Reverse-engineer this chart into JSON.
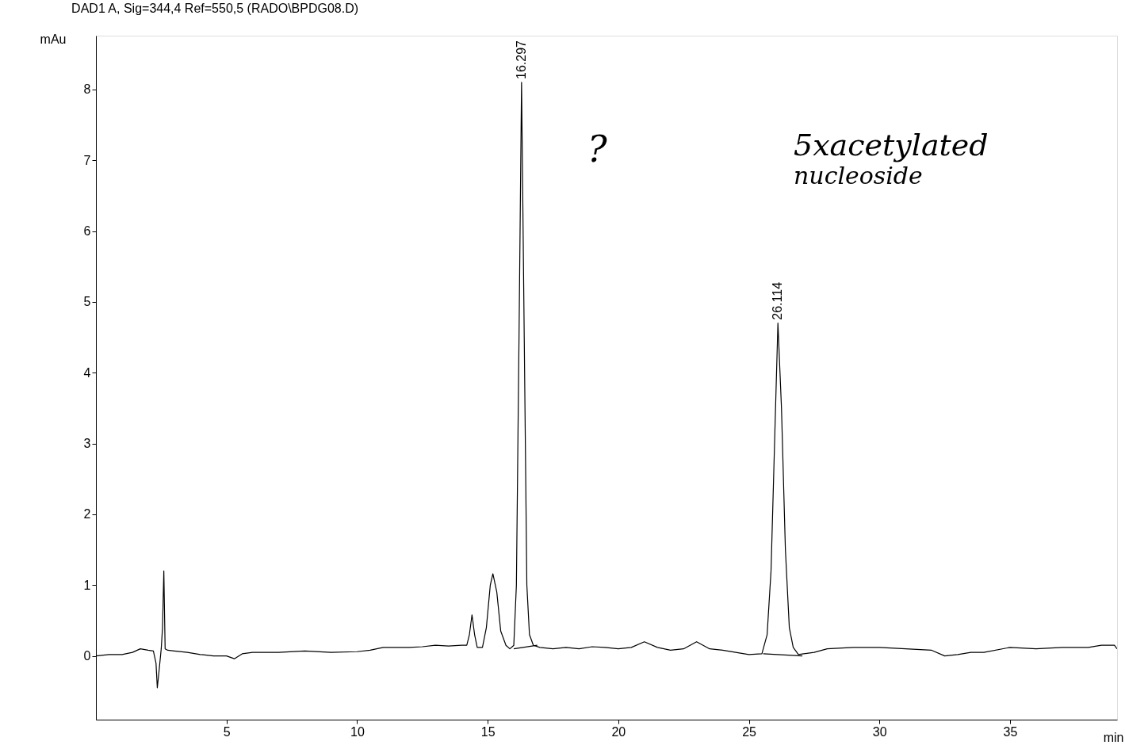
{
  "chart_data": {
    "type": "line",
    "title": "DAD1 A, Sig=344,4 Ref=550,5 (RADO\\BPDG08.D)",
    "xlabel": "min",
    "ylabel": "mAu",
    "xlim": [
      0,
      39.1
    ],
    "ylim": [
      -0.9,
      8.76
    ],
    "xticks": [
      5,
      10,
      15,
      20,
      25,
      30,
      35
    ],
    "yticks": [
      0,
      1,
      2,
      3,
      4,
      5,
      6,
      7,
      8
    ],
    "grid": false,
    "marker": "none",
    "line_style": "solid",
    "series": [
      {
        "color": "#000000",
        "x": [
          0,
          0.5,
          1.0,
          1.4,
          1.7,
          2.0,
          2.2,
          2.3,
          2.35,
          2.42,
          2.5,
          2.55,
          2.6,
          2.65,
          2.75,
          3,
          3.5,
          4,
          4.5,
          5,
          5.3,
          5.6,
          6,
          7,
          8,
          9,
          10,
          10.5,
          11,
          11.5,
          12,
          12.5,
          13,
          13.5,
          14,
          14.2,
          14.3,
          14.4,
          14.5,
          14.6,
          14.8,
          14.95,
          15.1,
          15.2,
          15.35,
          15.5,
          15.7,
          15.85,
          16.0,
          16.1,
          16.2,
          16.297,
          16.4,
          16.5,
          16.6,
          16.75,
          17,
          17.5,
          18,
          18.5,
          19,
          19.5,
          20,
          20.5,
          21,
          21.5,
          22,
          22.5,
          23,
          23.5,
          24,
          24.5,
          25,
          25.5,
          25.7,
          25.85,
          26.0,
          26.114,
          26.25,
          26.4,
          26.55,
          26.7,
          26.9,
          27.1,
          27.5,
          28,
          29,
          30,
          31,
          32,
          32.5,
          33,
          33.5,
          34,
          35,
          36,
          37,
          38,
          38.5,
          39,
          39.1
        ],
        "values": [
          0,
          0.02,
          0.02,
          0.05,
          0.1,
          0.08,
          0.07,
          -0.1,
          -0.45,
          -0.2,
          0.1,
          0.4,
          1.2,
          0.1,
          0.08,
          0.07,
          0.05,
          0.02,
          0.0,
          0.0,
          -0.04,
          0.03,
          0.05,
          0.05,
          0.07,
          0.05,
          0.06,
          0.08,
          0.12,
          0.12,
          0.12,
          0.13,
          0.15,
          0.14,
          0.15,
          0.15,
          0.3,
          0.58,
          0.3,
          0.12,
          0.12,
          0.4,
          1.0,
          1.16,
          0.9,
          0.35,
          0.15,
          0.1,
          0.15,
          1.0,
          4.5,
          8.1,
          4.5,
          1.0,
          0.3,
          0.15,
          0.12,
          0.1,
          0.12,
          0.1,
          0.13,
          0.12,
          0.1,
          0.12,
          0.2,
          0.12,
          0.08,
          0.1,
          0.2,
          0.1,
          0.08,
          0.05,
          0.02,
          0.03,
          0.3,
          1.2,
          3.2,
          4.7,
          3.5,
          1.5,
          0.4,
          0.12,
          0.02,
          0.03,
          0.05,
          0.1,
          0.12,
          0.12,
          0.1,
          0.08,
          0.0,
          0.02,
          0.05,
          0.05,
          0.12,
          0.1,
          0.12,
          0.12,
          0.15,
          0.15,
          0.1
        ]
      },
      {
        "color": "#000000",
        "x": [
          16.0,
          16.9
        ],
        "values": [
          0.1,
          0.15
        ]
      },
      {
        "color": "#000000",
        "x": [
          25.55,
          27.05
        ],
        "values": [
          0.03,
          0.0
        ]
      }
    ],
    "annotations": [
      {
        "text": "16.297",
        "x": 16.297,
        "y": 8.1
      },
      {
        "text": "26.114",
        "x": 26.114,
        "y": 4.7
      },
      "?",
      "5xacetylated",
      "nucleoside"
    ]
  }
}
